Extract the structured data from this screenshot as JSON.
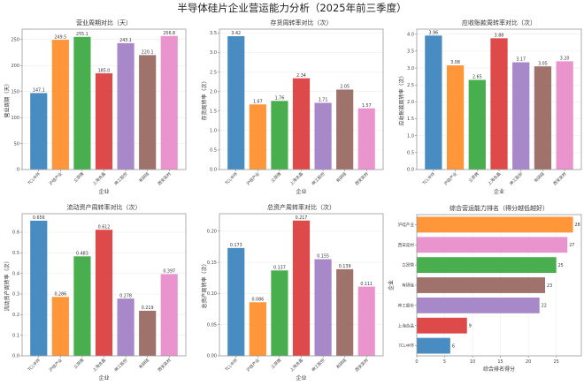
{
  "suptitle": "半导体硅片企业营运能力分析（2025年前三季度）",
  "chart_data": [
    {
      "type": "bar",
      "title": "营业周期对比（天）",
      "xlabel": "企业",
      "ylabel": "营业周期（天）",
      "categories": [
        "TCL中环",
        "沪硅产业",
        "立昂微",
        "上海合晶",
        "神工股份",
        "有研硅",
        "西安奕材"
      ],
      "values": [
        147.1,
        249.5,
        255.1,
        185.0,
        243.1,
        220.1,
        256.8
      ],
      "value_labels": [
        "147.1",
        "249.5",
        "255.1",
        "185.0",
        "243.1",
        "220.1",
        "256.8"
      ],
      "ylim": [
        0,
        270
      ],
      "yticks": [
        0,
        50,
        100,
        150,
        200,
        250
      ],
      "ytick_labels": [
        "0",
        "50",
        "100",
        "150",
        "200",
        "250"
      ],
      "grid": true
    },
    {
      "type": "bar",
      "title": "存货周转率对比（次）",
      "xlabel": "企业",
      "ylabel": "存货周转率（次）",
      "categories": [
        "TCL中环",
        "沪硅产业",
        "立昂微",
        "上海合晶",
        "神工股份",
        "有研硅",
        "西安奕材"
      ],
      "values": [
        3.42,
        1.67,
        1.76,
        2.34,
        1.71,
        2.05,
        1.57
      ],
      "value_labels": [
        "3.42",
        "1.67",
        "1.76",
        "2.34",
        "1.71",
        "2.05",
        "1.57"
      ],
      "ylim": [
        0,
        3.6
      ],
      "yticks": [
        0,
        0.5,
        1.0,
        1.5,
        2.0,
        2.5,
        3.0,
        3.5
      ],
      "ytick_labels": [
        "0.0",
        "0.5",
        "1.0",
        "1.5",
        "2.0",
        "2.5",
        "3.0",
        "3.5"
      ],
      "grid": true
    },
    {
      "type": "bar",
      "title": "应收账款周转率对比（次）",
      "xlabel": "企业",
      "ylabel": "应收账款周转率（次）",
      "categories": [
        "TCL中环",
        "沪硅产业",
        "立昂微",
        "上海合晶",
        "神工股份",
        "有研硅",
        "西安奕材"
      ],
      "values": [
        3.96,
        3.08,
        2.65,
        3.88,
        3.17,
        3.05,
        3.2
      ],
      "value_labels": [
        "3.96",
        "3.08",
        "2.65",
        "3.88",
        "3.17",
        "3.05",
        "3.20"
      ],
      "ylim": [
        0,
        4.15
      ],
      "yticks": [
        0,
        0.5,
        1.0,
        1.5,
        2.0,
        2.5,
        3.0,
        3.5,
        4.0
      ],
      "ytick_labels": [
        "0.0",
        "0.5",
        "1.0",
        "1.5",
        "2.0",
        "2.5",
        "3.0",
        "3.5",
        "4.0"
      ],
      "grid": true
    },
    {
      "type": "bar",
      "title": "流动资产周转率对比（次）",
      "xlabel": "企业",
      "ylabel": "流动资产周转率（次）",
      "categories": [
        "TCL中环",
        "沪硅产业",
        "立昂微",
        "上海合晶",
        "神工股份",
        "有研硅",
        "西安奕材"
      ],
      "values": [
        0.656,
        0.286,
        0.483,
        0.612,
        0.278,
        0.219,
        0.397
      ],
      "value_labels": [
        "0.656",
        "0.286",
        "0.483",
        "0.612",
        "0.278",
        "0.219",
        "0.397"
      ],
      "ylim": [
        0,
        0.69
      ],
      "yticks": [
        0,
        0.1,
        0.2,
        0.3,
        0.4,
        0.5,
        0.6
      ],
      "ytick_labels": [
        "0.0",
        "0.1",
        "0.2",
        "0.3",
        "0.4",
        "0.5",
        "0.6"
      ],
      "grid": true
    },
    {
      "type": "bar",
      "title": "总资产周转率对比（次）",
      "xlabel": "企业",
      "ylabel": "总资产周转率（次）",
      "categories": [
        "TCL中环",
        "沪硅产业",
        "立昂微",
        "上海合晶",
        "神工股份",
        "有研硅",
        "西安奕材"
      ],
      "values": [
        0.173,
        0.086,
        0.137,
        0.217,
        0.155,
        0.139,
        0.111
      ],
      "value_labels": [
        "0.173",
        "0.086",
        "0.137",
        "0.217",
        "0.155",
        "0.139",
        "0.111"
      ],
      "ylim": [
        0,
        0.228
      ],
      "yticks": [
        0,
        0.05,
        0.1,
        0.15,
        0.2
      ],
      "ytick_labels": [
        "0.00",
        "0.05",
        "0.10",
        "0.15",
        "0.20"
      ],
      "grid": true
    },
    {
      "type": "bar",
      "orientation": "horizontal",
      "title": "综合营运能力排名（得分越低越好）",
      "xlabel": "综合排名得分",
      "ylabel": "企业",
      "categories": [
        "沪硅产业",
        "西安奕材",
        "立昂微",
        "有研硅",
        "神工股份",
        "上海合晶",
        "TCL中环"
      ],
      "values": [
        28,
        27,
        25,
        23,
        22,
        9,
        6
      ],
      "value_labels": [
        "28",
        "27",
        "25",
        "23",
        "22",
        "9",
        "6"
      ],
      "xlim": [
        0,
        29.5
      ],
      "xticks": [
        0,
        5,
        10,
        15,
        20,
        25
      ],
      "xtick_labels": [
        "0",
        "5",
        "10",
        "15",
        "20",
        "25"
      ],
      "grid": true
    }
  ],
  "colors": {
    "TCL中环": "#3f86bf",
    "沪硅产业": "#ff902e",
    "立昂微": "#3fab45",
    "上海合晶": "#dc3f40",
    "神工股份": "#a283c6",
    "有研硅": "#9a6c64",
    "西安奕材": "#e98ecb"
  }
}
